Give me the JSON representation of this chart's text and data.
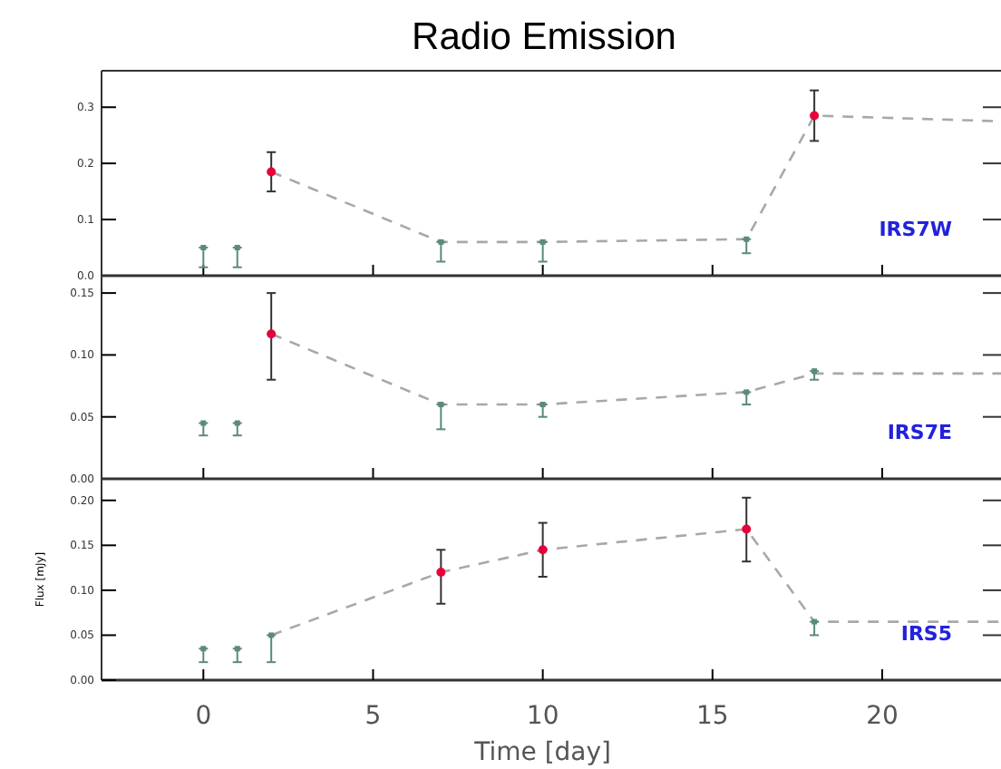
{
  "chart_data": [
    {
      "type": "line",
      "title": "Radio Emission",
      "xlim": [
        -3,
        23.5
      ],
      "xticks": [
        0,
        5,
        10,
        15,
        20
      ],
      "ylim": [
        0,
        0.365
      ],
      "yticks": [
        {
          "value": 0,
          "label": "0.0"
        },
        {
          "value": 0.1,
          "label": "0.1"
        },
        {
          "value": 0.2,
          "label": "0.2"
        },
        {
          "value": 0.3,
          "label": "0.3"
        }
      ],
      "tick_labels": "y",
      "annotations": [
        "IRS7W"
      ],
      "series": [
        {
          "color": "#a8a8a8",
          "line_style": "dashed",
          "marker": "none",
          "x": [
            2,
            7,
            10,
            16,
            18,
            23.5
          ],
          "values": [
            0.185,
            0.06,
            0.06,
            0.065,
            0.285,
            0.275
          ]
        },
        {
          "type": "scatter",
          "color": "#e8003a",
          "marker": "circle",
          "x": [
            2,
            18
          ],
          "values": [
            0.185,
            0.285
          ],
          "errors": [
            [
              0.15,
              0.22
            ],
            [
              0.24,
              0.33
            ]
          ]
        },
        {
          "type": "scatter",
          "color": "#5a8a7a",
          "marker": "square",
          "x": [
            0,
            1,
            7,
            10,
            16
          ],
          "values": [
            0.05,
            0.05,
            0.06,
            0.06,
            0.065
          ],
          "errors": [
            [
              0.015,
              0.05
            ],
            [
              0.015,
              0.05
            ],
            [
              0.025,
              0.06
            ],
            [
              0.025,
              0.06
            ],
            [
              0.04,
              0.065
            ]
          ]
        }
      ]
    },
    {
      "type": "line",
      "xlim": [
        -3,
        23.5
      ],
      "xticks": [
        0,
        5,
        10,
        15,
        20
      ],
      "ylim": [
        0,
        0.164
      ],
      "yticks": [
        {
          "value": 0,
          "label": "0.00"
        },
        {
          "value": 0.05,
          "label": "0.05"
        },
        {
          "value": 0.1,
          "label": "0.10"
        },
        {
          "value": 0.15,
          "label": "0.15"
        }
      ],
      "tick_labels": "y",
      "annotations": [
        "IRS7E"
      ],
      "series": [
        {
          "color": "#a8a8a8",
          "line_style": "dashed",
          "marker": "none",
          "x": [
            2,
            7,
            10,
            16,
            18,
            23.5
          ],
          "values": [
            0.117,
            0.06,
            0.06,
            0.07,
            0.085,
            0.085
          ]
        },
        {
          "type": "scatter",
          "color": "#e8003a",
          "marker": "circle",
          "x": [
            2
          ],
          "values": [
            0.117
          ],
          "errors": [
            [
              0.08,
              0.15
            ]
          ]
        },
        {
          "type": "scatter",
          "color": "#5a8a7a",
          "marker": "square",
          "x": [
            0,
            1,
            7,
            10,
            16,
            18
          ],
          "values": [
            0.045,
            0.045,
            0.06,
            0.06,
            0.07,
            0.087
          ],
          "errors": [
            [
              0.035,
              0.045
            ],
            [
              0.035,
              0.045
            ],
            [
              0.04,
              0.06
            ],
            [
              0.05,
              0.06
            ],
            [
              0.06,
              0.07
            ],
            [
              0.08,
              0.087
            ]
          ]
        }
      ]
    },
    {
      "type": "line",
      "xlabel": "Time [day]",
      "ylabel": "Flux [mJy]",
      "xlim": [
        -3,
        23.5
      ],
      "xticks": [
        0,
        5,
        10,
        15,
        20
      ],
      "ylim": [
        0,
        0.224
      ],
      "yticks": [
        {
          "value": 0,
          "label": "0.00"
        },
        {
          "value": 0.05,
          "label": "0.05"
        },
        {
          "value": 0.1,
          "label": "0.10"
        },
        {
          "value": 0.15,
          "label": "0.15"
        },
        {
          "value": 0.2,
          "label": "0.20"
        }
      ],
      "annotations": [
        "IRS5"
      ],
      "series": [
        {
          "color": "#a8a8a8",
          "line_style": "dashed",
          "marker": "none",
          "x": [
            2,
            7,
            10,
            16,
            18,
            23.5
          ],
          "values": [
            0.05,
            0.12,
            0.145,
            0.168,
            0.065,
            0.065
          ]
        },
        {
          "type": "scatter",
          "color": "#e8003a",
          "marker": "circle",
          "x": [
            7,
            10,
            16
          ],
          "values": [
            0.12,
            0.145,
            0.168
          ],
          "errors": [
            [
              0.085,
              0.145
            ],
            [
              0.115,
              0.175
            ],
            [
              0.132,
              0.203
            ]
          ]
        },
        {
          "type": "scatter",
          "color": "#5a8a7a",
          "marker": "square",
          "x": [
            0,
            1,
            2,
            18
          ],
          "values": [
            0.035,
            0.035,
            0.05,
            0.065
          ],
          "errors": [
            [
              0.02,
              0.035
            ],
            [
              0.02,
              0.035
            ],
            [
              0.02,
              0.05
            ],
            [
              0.05,
              0.065
            ]
          ]
        }
      ]
    }
  ]
}
